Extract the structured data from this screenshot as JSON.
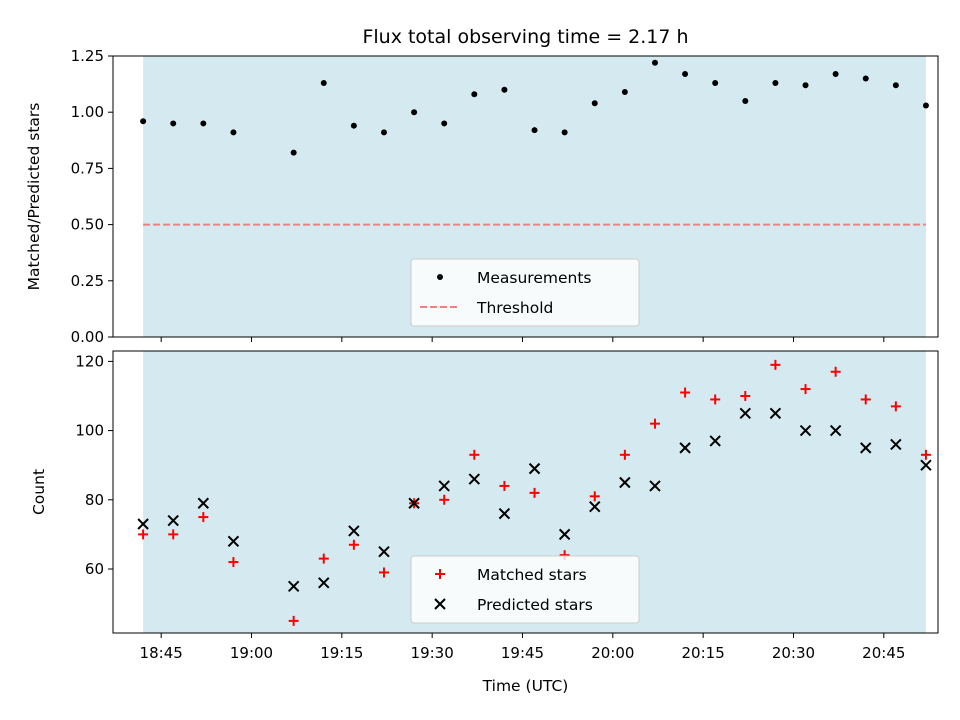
{
  "chart_data": [
    {
      "type": "scatter",
      "title": "Flux total observing time = 2.17 h",
      "xlabel": "",
      "ylabel": "Matched/Predicted stars",
      "ylim": [
        0,
        1.25
      ],
      "yticks": [
        "0.00",
        "0.25",
        "0.50",
        "0.75",
        "1.00",
        "1.25"
      ],
      "xlim": [
        "18:37",
        "20:54"
      ],
      "shaded_span": [
        "18:42",
        "20:52"
      ],
      "legend": {
        "placement": "lower center",
        "entries": [
          "Measurements",
          "Threshold"
        ]
      },
      "series": [
        {
          "name": "Measurements",
          "marker": "dot",
          "color": "#000000",
          "x": [
            "18:42",
            "18:47",
            "18:52",
            "18:57",
            "19:07",
            "19:12",
            "19:17",
            "19:22",
            "19:27",
            "19:32",
            "19:37",
            "19:42",
            "19:47",
            "19:52",
            "19:57",
            "20:02",
            "20:07",
            "20:12",
            "20:17",
            "20:22",
            "20:27",
            "20:32",
            "20:37",
            "20:42",
            "20:47",
            "20:52"
          ],
          "y": [
            0.96,
            0.95,
            0.95,
            0.91,
            0.82,
            1.13,
            0.94,
            0.91,
            1.0,
            0.95,
            1.08,
            1.1,
            0.92,
            0.91,
            1.04,
            1.09,
            1.22,
            1.17,
            1.13,
            1.05,
            1.13,
            1.12,
            1.17,
            1.15,
            1.12,
            1.03
          ]
        },
        {
          "name": "Threshold",
          "style": "dashed",
          "color": "#f08080",
          "y": 0.5
        }
      ]
    },
    {
      "type": "scatter",
      "title": "",
      "xlabel": "Time (UTC)",
      "ylabel": "Count",
      "ylim": [
        41.5,
        123
      ],
      "yticks": [
        "60",
        "80",
        "100",
        "120"
      ],
      "xticks": [
        "18:45",
        "19:00",
        "19:15",
        "19:30",
        "19:45",
        "20:00",
        "20:15",
        "20:30",
        "20:45"
      ],
      "xlim": [
        "18:37",
        "20:54"
      ],
      "shaded_span": [
        "18:42",
        "20:52"
      ],
      "legend": {
        "placement": "lower center",
        "entries": [
          "Matched stars",
          "Predicted stars"
        ]
      },
      "series": [
        {
          "name": "Matched stars",
          "marker": "plus",
          "color": "#ff0000",
          "x": [
            "18:42",
            "18:47",
            "18:52",
            "18:57",
            "19:07",
            "19:12",
            "19:17",
            "19:22",
            "19:27",
            "19:32",
            "19:37",
            "19:42",
            "19:47",
            "19:52",
            "19:57",
            "20:02",
            "20:07",
            "20:12",
            "20:17",
            "20:22",
            "20:27",
            "20:32",
            "20:37",
            "20:42",
            "20:47",
            "20:52"
          ],
          "y": [
            70,
            70,
            75,
            62,
            45,
            63,
            67,
            59,
            79,
            80,
            93,
            84,
            82,
            64,
            81,
            93,
            102,
            111,
            109,
            110,
            119,
            112,
            117,
            109,
            107,
            93
          ]
        },
        {
          "name": "Predicted stars",
          "marker": "x",
          "color": "#000000",
          "x": [
            "18:42",
            "18:47",
            "18:52",
            "18:57",
            "19:07",
            "19:12",
            "19:17",
            "19:22",
            "19:27",
            "19:32",
            "19:37",
            "19:42",
            "19:47",
            "19:52",
            "19:57",
            "20:02",
            "20:07",
            "20:12",
            "20:17",
            "20:22",
            "20:27",
            "20:32",
            "20:37",
            "20:42",
            "20:47",
            "20:52"
          ],
          "y": [
            73,
            74,
            79,
            68,
            55,
            56,
            71,
            65,
            79,
            84,
            86,
            76,
            89,
            70,
            78,
            85,
            84,
            95,
            97,
            105,
            105,
            100,
            100,
            95,
            96,
            90
          ]
        }
      ]
    }
  ],
  "colors": {
    "shaded_span": "#d4eaf0",
    "matched": "#ff0000",
    "predicted": "#000000",
    "threshold": "#f08080"
  }
}
